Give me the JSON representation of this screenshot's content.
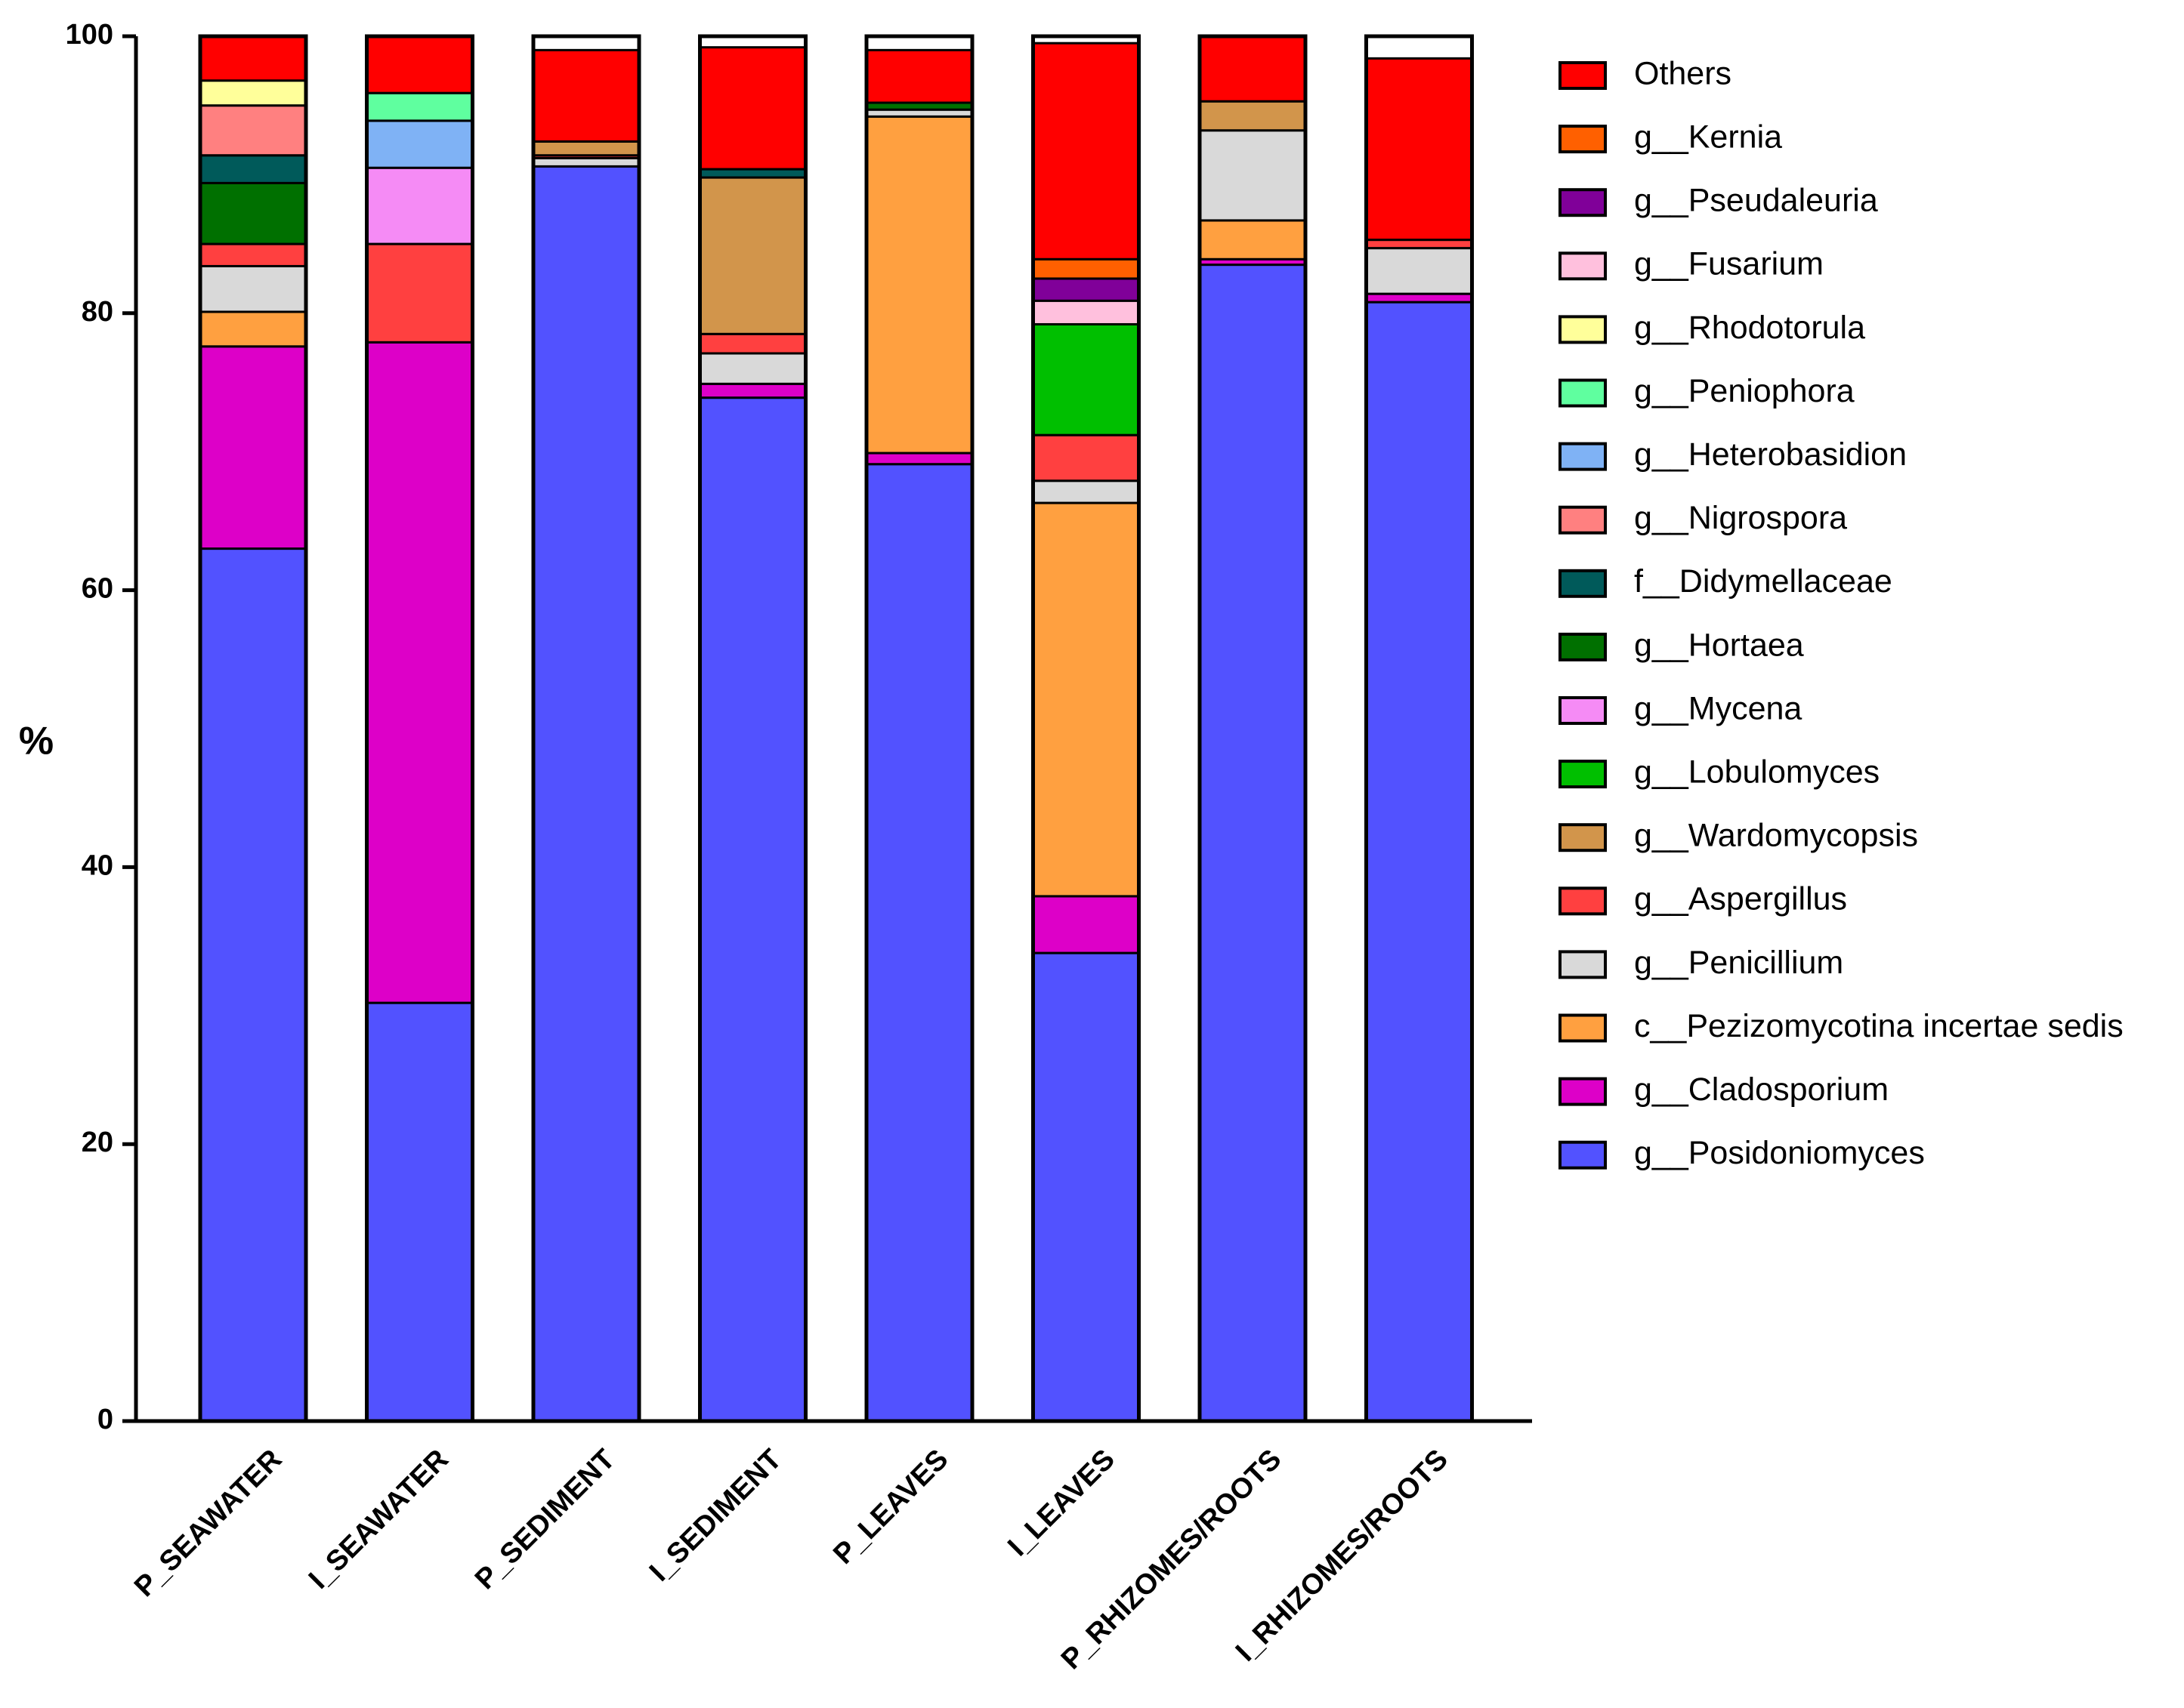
{
  "chart_data": {
    "type": "bar",
    "stacked": true,
    "title": "",
    "xlabel": "",
    "ylabel": "%",
    "ylim": [
      0,
      100
    ],
    "yticks": [
      "0",
      "20",
      "40",
      "60",
      "80",
      "100"
    ],
    "grid": false,
    "legend_position": "right",
    "categories": [
      "P_SEAWATER",
      "I_SEAWATER",
      "P_SEDIMENT",
      "I_SEDIMENT",
      "P_LEAVES",
      "I_LEAVES",
      "P_RHIZOMES/ROOTS",
      "I_RHIZOMES/ROOTS"
    ],
    "series": [
      {
        "name": "g__Posidoniomyces",
        "color": "#5252FF",
        "values": [
          63.0,
          30.2,
          90.6,
          73.9,
          69.1,
          33.8,
          83.5,
          80.8
        ]
      },
      {
        "name": "g__Cladosporium",
        "color": "#DD00C8",
        "values": [
          14.6,
          47.7,
          0,
          1.0,
          0.8,
          4.1,
          0.4,
          0.6
        ]
      },
      {
        "name": "c__Pezizomycotina incertae sedis",
        "color": "#FFA040",
        "values": [
          2.5,
          0,
          0,
          0,
          24.3,
          28.4,
          2.8,
          0
        ]
      },
      {
        "name": "g__Penicillium",
        "color": "#D9D9D9",
        "values": [
          3.3,
          0,
          0.6,
          2.2,
          0.5,
          1.6,
          6.5,
          3.3
        ]
      },
      {
        "name": "g__Aspergillus",
        "color": "#FF4040",
        "values": [
          1.6,
          7.1,
          0.2,
          1.4,
          0,
          3.3,
          0,
          0.6
        ]
      },
      {
        "name": "g__Wardomycopsis",
        "color": "#D2954B",
        "values": [
          0,
          0,
          1.0,
          11.3,
          0,
          0,
          2.1,
          0
        ]
      },
      {
        "name": "g__Lobulomyces",
        "color": "#00BF00",
        "values": [
          0,
          0,
          0,
          0,
          0,
          8.0,
          0,
          0
        ]
      },
      {
        "name": "g__Mycena",
        "color": "#F58BF5",
        "values": [
          0,
          5.5,
          0,
          0,
          0,
          0,
          0,
          0
        ]
      },
      {
        "name": "g__Hortaea",
        "color": "#007000",
        "values": [
          4.4,
          0,
          0,
          0,
          0.5,
          0,
          0,
          0
        ]
      },
      {
        "name": "f__Didymellaceae",
        "color": "#005A5A",
        "values": [
          2.0,
          0,
          0,
          0.6,
          0,
          0,
          0,
          0
        ]
      },
      {
        "name": "g__Nigrospora",
        "color": "#FF8080",
        "values": [
          3.6,
          0,
          0,
          0,
          0,
          0,
          0,
          0
        ]
      },
      {
        "name": "g__Heterobasidion",
        "color": "#7FB2F5",
        "values": [
          0,
          3.4,
          0,
          0,
          0,
          0,
          0,
          0
        ]
      },
      {
        "name": "g__Peniophora",
        "color": "#5FFF9F",
        "values": [
          0,
          2.0,
          0,
          0,
          0,
          0,
          0,
          0
        ]
      },
      {
        "name": "g__Rhodotorula",
        "color": "#FFFF9A",
        "values": [
          1.8,
          0,
          0,
          0,
          0,
          0,
          0,
          0
        ]
      },
      {
        "name": "g__Fusarium",
        "color": "#FFC0DD",
        "values": [
          0,
          0,
          0,
          0,
          0,
          1.7,
          0,
          0
        ]
      },
      {
        "name": "g__Pseudaleuria",
        "color": "#800099",
        "values": [
          0,
          0,
          0,
          0,
          0,
          1.6,
          0,
          0
        ]
      },
      {
        "name": "g__Kernia",
        "color": "#FF6000",
        "values": [
          0,
          0,
          0,
          0,
          0,
          1.4,
          0,
          0
        ]
      },
      {
        "name": "Others",
        "color": "#FF0000",
        "values": [
          3.2,
          4.1,
          6.6,
          8.8,
          3.8,
          15.6,
          4.7,
          13.1
        ]
      }
    ],
    "legend_order": [
      "Others",
      "g__Kernia",
      "g__Pseudaleuria",
      "g__Fusarium",
      "g__Rhodotorula",
      "g__Peniophora",
      "g__Heterobasidion",
      "g__Nigrospora",
      "f__Didymellaceae",
      "g__Hortaea",
      "g__Mycena",
      "g__Lobulomyces",
      "g__Wardomycopsis",
      "g__Aspergillus",
      "g__Penicillium",
      "c__Pezizomycotina incertae sedis",
      "g__Cladosporium",
      "g__Posidoniomyces"
    ]
  }
}
